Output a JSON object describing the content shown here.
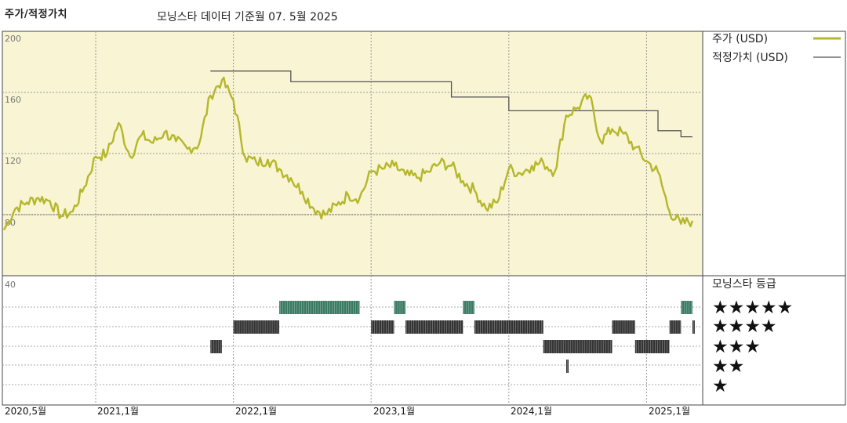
{
  "header": {
    "title": "주가/적정가치",
    "subtitle": "모닝스타 데이터 기준월 07. 5월 2025"
  },
  "colors": {
    "price": "#b5b72b",
    "fair": "#555555",
    "plot_bg": "#f8f4d4",
    "five_star": "#3a7a63",
    "four_star": "#333333",
    "three_star": "#333333",
    "two_star": "#333333"
  },
  "legend": {
    "price_label": "주가 (USD)",
    "fair_label": "적정가치 (USD)",
    "rating_title": "모닝스타 등급"
  },
  "y_ticks": [
    "200",
    "160",
    "120",
    "80",
    "40"
  ],
  "x_ticks": [
    "2020,5월",
    "2021,1월",
    "2022,1월",
    "2023,1월",
    "2024,1월",
    "2025,1월"
  ],
  "rating_rows": [
    "★★★★★",
    "★★★★",
    "★★★",
    "★★",
    "★"
  ],
  "chart_data": {
    "type": "line",
    "title": "주가/적정가치",
    "subtitle": "모닝스타 데이터 기준월 07. 5월 2025",
    "ylim": [
      40,
      200
    ],
    "xlim": [
      "2020-05",
      "2025-05"
    ],
    "y_ticks": [
      200,
      160,
      120,
      80,
      40
    ],
    "x_tick_labels": [
      "2020,5월",
      "2021,1월",
      "2022,1월",
      "2023,1월",
      "2024,1월",
      "2025,1월"
    ],
    "grid": true,
    "legend": "right",
    "series": [
      {
        "name": "주가 (USD)",
        "x": [
          "2020-05",
          "2020-06",
          "2020-07",
          "2020-08",
          "2020-09",
          "2020-10",
          "2020-11",
          "2020-12",
          "2021-01",
          "2021-02",
          "2021-03",
          "2021-04",
          "2021-05",
          "2021-06",
          "2021-07",
          "2021-08",
          "2021-09",
          "2021-10",
          "2021-11",
          "2021-12",
          "2022-01",
          "2022-02",
          "2022-03",
          "2022-04",
          "2022-05",
          "2022-06",
          "2022-07",
          "2022-08",
          "2022-09",
          "2022-10",
          "2022-11",
          "2022-12",
          "2023-01",
          "2023-02",
          "2023-03",
          "2023-04",
          "2023-05",
          "2023-06",
          "2023-07",
          "2023-08",
          "2023-09",
          "2023-10",
          "2023-11",
          "2023-12",
          "2024-01",
          "2024-02",
          "2024-03",
          "2024-04",
          "2024-05",
          "2024-06",
          "2024-07",
          "2024-08",
          "2024-09",
          "2024-10",
          "2024-11",
          "2024-12",
          "2025-01",
          "2025-02",
          "2025-03",
          "2025-04",
          "2025-05"
        ],
        "values": [
          70,
          84,
          88,
          91,
          89,
          79,
          82,
          98,
          118,
          120,
          140,
          118,
          132,
          127,
          134,
          128,
          123,
          126,
          158,
          168,
          155,
          118,
          114,
          116,
          110,
          104,
          95,
          84,
          80,
          86,
          93,
          91,
          108,
          110,
          112,
          106,
          104,
          108,
          114,
          112,
          102,
          96,
          84,
          88,
          110,
          107,
          112,
          114,
          108,
          145,
          150,
          158,
          128,
          136,
          133,
          124,
          115,
          108,
          82,
          74,
          76
        ]
      },
      {
        "name": "적정가치 (USD)",
        "x": [
          "2021-11",
          "2022-06",
          "2022-06",
          "2023-01",
          "2023-01",
          "2023-08",
          "2023-08",
          "2024-01",
          "2024-01",
          "2025-02",
          "2025-02",
          "2025-04",
          "2025-04",
          "2025-05"
        ],
        "values": [
          174,
          174,
          167,
          167,
          167,
          167,
          157,
          157,
          148,
          148,
          135,
          135,
          131,
          131
        ]
      }
    ],
    "ratings": {
      "title": "모닝스타 등급",
      "rows": [
        "★★★★★",
        "★★★★",
        "★★★",
        "★★",
        "★"
      ],
      "periods": [
        {
          "stars": 3,
          "from": "2021-11",
          "to": "2021-12"
        },
        {
          "stars": 4,
          "from": "2022-01",
          "to": "2022-05"
        },
        {
          "stars": 5,
          "from": "2022-05",
          "to": "2022-12"
        },
        {
          "stars": 4,
          "from": "2023-01",
          "to": "2023-03"
        },
        {
          "stars": 5,
          "from": "2023-03",
          "to": "2023-04"
        },
        {
          "stars": 4,
          "from": "2023-04",
          "to": "2023-09"
        },
        {
          "stars": 5,
          "from": "2023-09",
          "to": "2023-10"
        },
        {
          "stars": 4,
          "from": "2023-10",
          "to": "2024-04"
        },
        {
          "stars": 3,
          "from": "2024-04",
          "to": "2024-10"
        },
        {
          "stars": 2,
          "from": "2024-06",
          "to": "2024-06"
        },
        {
          "stars": 4,
          "from": "2024-10",
          "to": "2024-12"
        },
        {
          "stars": 3,
          "from": "2024-12",
          "to": "2025-03"
        },
        {
          "stars": 4,
          "from": "2025-03",
          "to": "2025-04"
        },
        {
          "stars": 5,
          "from": "2025-04",
          "to": "2025-05"
        },
        {
          "stars": 4,
          "from": "2025-05",
          "to": "2025-05"
        }
      ]
    }
  }
}
